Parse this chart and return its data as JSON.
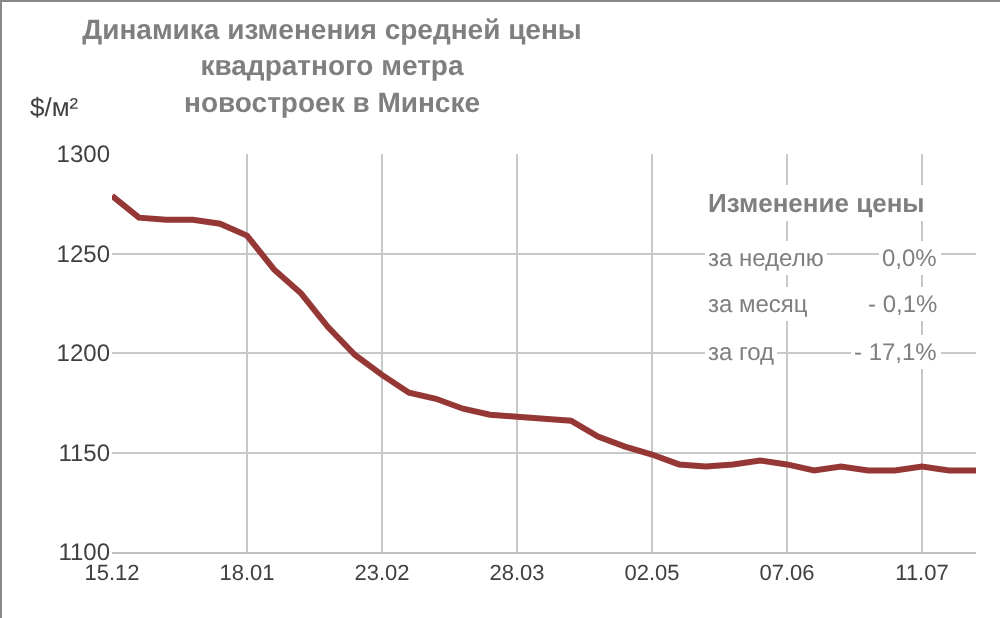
{
  "chart_data": {
    "type": "line",
    "title": "Динамика изменения средней цены квадратного метра новостроек в Минске",
    "ylabel": "$/м²",
    "categories": [
      "15.12",
      null,
      null,
      null,
      null,
      "18.01",
      null,
      null,
      null,
      null,
      "23.02",
      null,
      null,
      null,
      null,
      "28.03",
      null,
      null,
      null,
      null,
      "02.05",
      null,
      null,
      null,
      null,
      "07.06",
      null,
      null,
      null,
      null,
      "11.07",
      null,
      null
    ],
    "series": [
      {
        "color": "#953735",
        "values": [
          1279,
          1268,
          1267,
          1267,
          1265,
          1259,
          1242,
          1230,
          1213,
          1199,
          1189,
          1180,
          1177,
          1172,
          1169,
          1168,
          1167,
          1166,
          1158,
          1153,
          1149,
          1144,
          1143,
          1144,
          1146,
          1144,
          1141,
          1143,
          1141,
          1141,
          1143,
          1141,
          1141
        ]
      }
    ],
    "ylim": [
      1100,
      1300
    ],
    "yticks": [
      1100,
      1150,
      1200,
      1250,
      1300
    ],
    "grid": true,
    "marker": "none",
    "line_style": "solid",
    "annotations": [
      "Изменение цены",
      "за неделю",
      "0,0%",
      "за месяц",
      "- 0,1%",
      "за год",
      "- 17,1%"
    ]
  }
}
